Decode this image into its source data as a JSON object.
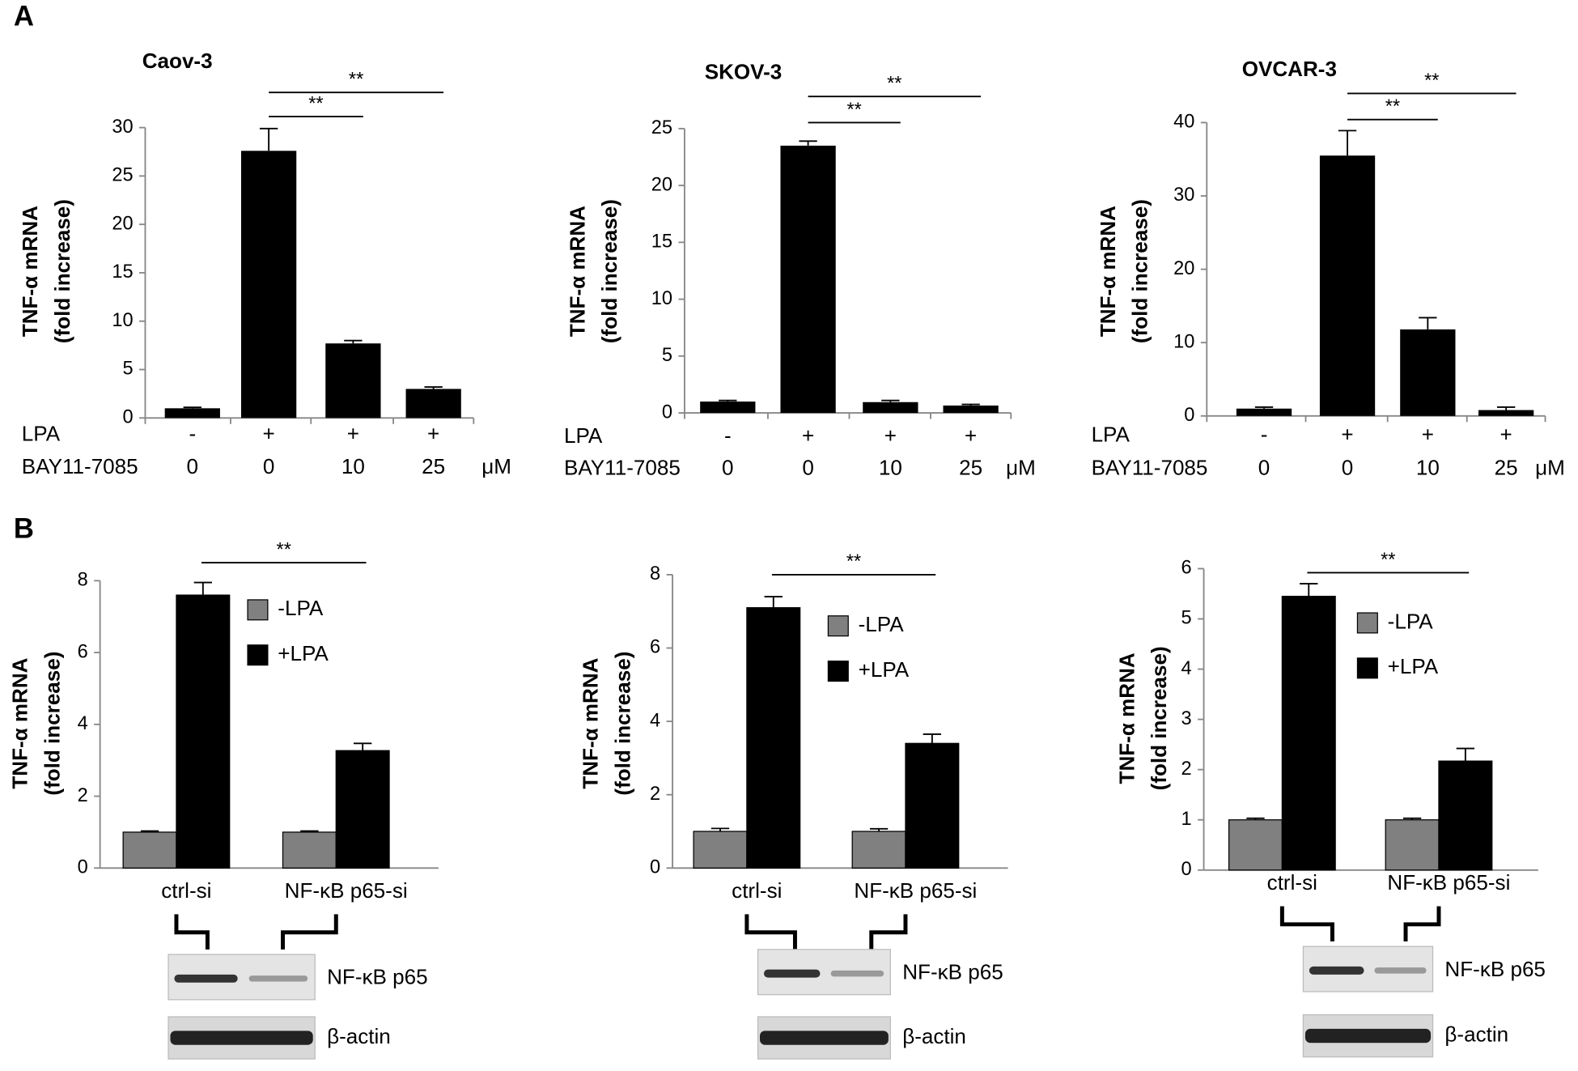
{
  "panel_labels": [
    "A",
    "B"
  ],
  "chart_data": [
    {
      "type": "bar",
      "title": "Caov-3",
      "ylabel": [
        "TNF-α mRNA",
        "(fold increase)"
      ],
      "values": [
        1,
        27.6,
        7.7,
        3.0
      ],
      "errors": [
        0.1,
        2.3,
        0.3,
        0.2
      ],
      "color": "#000000",
      "ylim": [
        0,
        30
      ],
      "yticks": [
        0,
        5,
        10,
        15,
        20,
        25,
        30
      ],
      "condition_rows": [
        {
          "label": "LPA",
          "values": [
            "-",
            "+",
            "+",
            "+"
          ]
        },
        {
          "label": "BAY11-7085",
          "values": [
            "0",
            "0",
            "10",
            "25"
          ],
          "unit": "μM"
        }
      ],
      "significance": [
        {
          "from": 1,
          "to": 2,
          "label": "**"
        },
        {
          "from": 1,
          "to": 3,
          "label": "**"
        }
      ]
    },
    {
      "type": "bar",
      "title": "SKOV-3",
      "ylabel": [
        "TNF-α mRNA",
        "(fold increase)"
      ],
      "values": [
        1,
        23.5,
        0.95,
        0.65
      ],
      "errors": [
        0.1,
        0.4,
        0.15,
        0.1
      ],
      "color": "#000000",
      "ylim": [
        0,
        25
      ],
      "yticks": [
        0,
        5,
        10,
        15,
        20,
        25
      ],
      "condition_rows": [
        {
          "label": "LPA",
          "values": [
            "-",
            "+",
            "+",
            "+"
          ]
        },
        {
          "label": "BAY11-7085",
          "values": [
            "0",
            "0",
            "10",
            "25"
          ],
          "unit": "μM"
        }
      ],
      "significance": [
        {
          "from": 1,
          "to": 2,
          "label": "**"
        },
        {
          "from": 1,
          "to": 3,
          "label": "**"
        }
      ]
    },
    {
      "type": "bar",
      "title": "OVCAR-3",
      "ylabel": [
        "TNF-α mRNA",
        "(fold increase)"
      ],
      "values": [
        1,
        35.5,
        11.8,
        0.8
      ],
      "errors": [
        0.2,
        3.4,
        1.6,
        0.4
      ],
      "color": "#000000",
      "ylim": [
        0,
        40
      ],
      "yticks": [
        0,
        10,
        20,
        30,
        40
      ],
      "condition_rows": [
        {
          "label": "LPA",
          "values": [
            "-",
            "+",
            "+",
            "+"
          ]
        },
        {
          "label": "BAY11-7085",
          "values": [
            "0",
            "0",
            "10",
            "25"
          ],
          "unit": "μM"
        }
      ],
      "significance": [
        {
          "from": 1,
          "to": 2,
          "label": "**"
        },
        {
          "from": 1,
          "to": 3,
          "label": "**"
        }
      ]
    },
    {
      "type": "grouped_bar",
      "ylabel": [
        "TNF-α mRNA",
        "(fold increase)"
      ],
      "categories": [
        "ctrl-si",
        "NF-κB p65-si"
      ],
      "series": [
        {
          "name": "-LPA",
          "color": "#808080",
          "values": [
            1,
            1
          ],
          "errors": [
            0.03,
            0.03
          ]
        },
        {
          "name": "+LPA",
          "color": "#000000",
          "values": [
            7.6,
            3.27
          ],
          "errors": [
            0.35,
            0.2
          ]
        }
      ],
      "ylim": [
        0,
        8
      ],
      "yticks": [
        0,
        2,
        4,
        6,
        8
      ],
      "significance": [
        {
          "from": 0,
          "to": 1,
          "label": "**"
        }
      ],
      "blot_labels": [
        "NF-κB p65",
        "β-actin"
      ]
    },
    {
      "type": "grouped_bar",
      "ylabel": [
        "TNF-α mRNA",
        "(fold increase)"
      ],
      "categories": [
        "ctrl-si",
        "NF-κB p65-si"
      ],
      "series": [
        {
          "name": "-LPA",
          "color": "#808080",
          "values": [
            1,
            1
          ],
          "errors": [
            0.08,
            0.07
          ]
        },
        {
          "name": "+LPA",
          "color": "#000000",
          "values": [
            7.1,
            3.4
          ],
          "errors": [
            0.3,
            0.25
          ]
        }
      ],
      "ylim": [
        0,
        8
      ],
      "yticks": [
        0,
        2,
        4,
        6,
        8
      ],
      "significance": [
        {
          "from": 0,
          "to": 1,
          "label": "**"
        }
      ],
      "blot_labels": [
        "NF-κB p65",
        "β-actin"
      ]
    },
    {
      "type": "grouped_bar",
      "ylabel": [
        "TNF-α mRNA",
        "(fold increase)"
      ],
      "categories": [
        "ctrl-si",
        "NF-κB p65-si"
      ],
      "series": [
        {
          "name": "-LPA",
          "color": "#808080",
          "values": [
            1,
            1
          ],
          "errors": [
            0.03,
            0.03
          ]
        },
        {
          "name": "+LPA",
          "color": "#000000",
          "values": [
            5.45,
            2.17
          ],
          "errors": [
            0.25,
            0.25
          ]
        }
      ],
      "ylim": [
        0,
        6
      ],
      "yticks": [
        0,
        1,
        2,
        3,
        4,
        5,
        6
      ],
      "significance": [
        {
          "from": 0,
          "to": 1,
          "label": "**"
        }
      ],
      "blot_labels": [
        "NF-κB p65",
        "β-actin"
      ]
    }
  ]
}
